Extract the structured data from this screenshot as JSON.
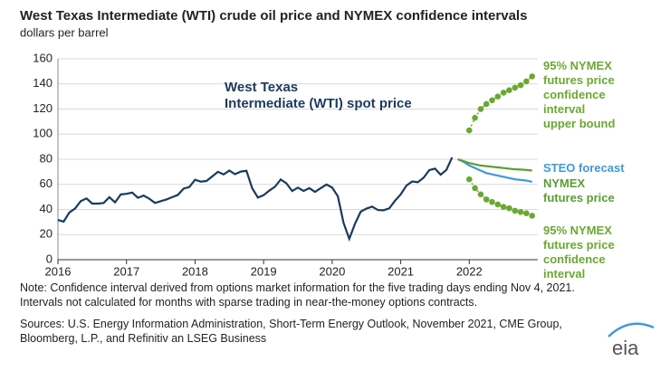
{
  "chart_data": {
    "type": "line",
    "title": "West Texas Intermediate (WTI) crude oil price and NYMEX confidence intervals",
    "subtitle": "dollars per barrel",
    "note": "Note: Confidence interval derived from options market information for the five trading days ending Nov 4, 2021. Intervals not calculated for months with sparse trading in near-the-money options contracts.",
    "source": "Sources: U.S. Energy Information Administration, Short-Term Energy Outlook, November 2021, CME Group, Bloomberg, L.P., and Refinitiv an LSEG Business",
    "logo": "eia",
    "xlim": [
      2016,
      2023
    ],
    "xticks": [
      2016,
      2017,
      2018,
      2019,
      2020,
      2021,
      2022
    ],
    "ylim": [
      0,
      160
    ],
    "yticks": [
      0,
      20,
      40,
      60,
      80,
      100,
      120,
      140,
      160
    ],
    "grid": true,
    "series": [
      {
        "name": "West Texas\nIntermediate (WTI) spot price",
        "color": "#1b3a5c",
        "style": "line",
        "x": [
          2016.0,
          2016.083,
          2016.167,
          2016.25,
          2016.333,
          2016.417,
          2016.5,
          2016.583,
          2016.667,
          2016.75,
          2016.833,
          2016.917,
          2017.0,
          2017.083,
          2017.167,
          2017.25,
          2017.333,
          2017.417,
          2017.5,
          2017.583,
          2017.667,
          2017.75,
          2017.833,
          2017.917,
          2018.0,
          2018.083,
          2018.167,
          2018.25,
          2018.333,
          2018.417,
          2018.5,
          2018.583,
          2018.667,
          2018.75,
          2018.833,
          2018.917,
          2019.0,
          2019.083,
          2019.167,
          2019.25,
          2019.333,
          2019.417,
          2019.5,
          2019.583,
          2019.667,
          2019.75,
          2019.833,
          2019.917,
          2020.0,
          2020.083,
          2020.167,
          2020.25,
          2020.333,
          2020.417,
          2020.5,
          2020.583,
          2020.667,
          2020.75,
          2020.833,
          2020.917,
          2021.0,
          2021.083,
          2021.167,
          2021.25,
          2021.333,
          2021.417,
          2021.5,
          2021.583,
          2021.667,
          2021.75
        ],
        "values": [
          31.7,
          30.3,
          37.6,
          40.8,
          46.7,
          48.8,
          44.7,
          44.7,
          45.2,
          49.8,
          45.7,
          52.0,
          52.5,
          53.5,
          49.3,
          51.1,
          48.5,
          45.2,
          46.6,
          48.0,
          49.8,
          51.6,
          56.6,
          57.9,
          63.7,
          62.2,
          62.7,
          66.3,
          70.0,
          67.9,
          71.0,
          68.1,
          70.2,
          70.8,
          57.0,
          49.5,
          51.4,
          55.0,
          58.2,
          63.9,
          60.8,
          54.7,
          57.4,
          54.8,
          57.0,
          54.0,
          57.0,
          59.9,
          57.5,
          50.5,
          29.2,
          16.6,
          28.6,
          38.3,
          40.7,
          42.3,
          39.6,
          39.4,
          40.9,
          47.0,
          52.0,
          59.0,
          62.3,
          61.7,
          65.2,
          71.4,
          72.5,
          67.7,
          71.6,
          81.5
        ]
      },
      {
        "name": "STEO forecast",
        "color": "#3d9ad6",
        "style": "line",
        "x": [
          2021.833,
          2021.917,
          2022.0,
          2022.083,
          2022.167,
          2022.25,
          2022.333,
          2022.417,
          2022.5,
          2022.583,
          2022.667,
          2022.75,
          2022.833,
          2022.917
        ],
        "values": [
          80,
          78,
          75,
          73,
          71,
          69,
          68,
          67,
          66,
          65,
          64,
          63.5,
          63,
          62
        ]
      },
      {
        "name": "NYMEX\nfutures price",
        "color": "#5a9e32",
        "style": "line",
        "x": [
          2021.833,
          2021.917,
          2022.0,
          2022.083,
          2022.167,
          2022.25,
          2022.333,
          2022.417,
          2022.5,
          2022.583,
          2022.667,
          2022.75,
          2022.833,
          2022.917
        ],
        "values": [
          80,
          78.5,
          77,
          76,
          75,
          74.5,
          74,
          73.5,
          73,
          72.5,
          72,
          71.8,
          71.5,
          71
        ]
      },
      {
        "name": "95% NYMEX\nfutures price\nconfidence\ninterval\nupper bound",
        "color": "#6aa832",
        "style": "dots",
        "x": [
          2022.0,
          2022.083,
          2022.167,
          2022.25,
          2022.333,
          2022.417,
          2022.5,
          2022.583,
          2022.667,
          2022.75,
          2022.833,
          2022.917
        ],
        "values": [
          103,
          113,
          120,
          124,
          127,
          130,
          133,
          135,
          137,
          139,
          142,
          146
        ]
      },
      {
        "name": "95% NYMEX\nfutures price\nconfidence\ninterval",
        "color": "#6aa832",
        "style": "dots",
        "x": [
          2022.0,
          2022.083,
          2022.167,
          2022.25,
          2022.333,
          2022.417,
          2022.5,
          2022.583,
          2022.667,
          2022.75,
          2022.833,
          2022.917
        ],
        "values": [
          64,
          57,
          52,
          48,
          46,
          44,
          42,
          41,
          39,
          38,
          37,
          35
        ]
      }
    ]
  }
}
